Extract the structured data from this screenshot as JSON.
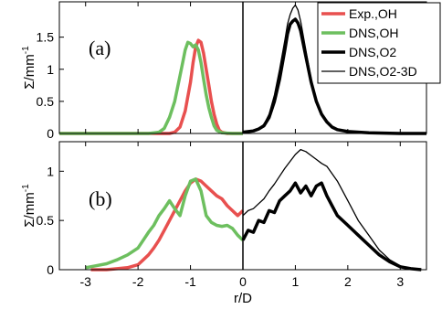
{
  "chart_data": {
    "type": "line",
    "xlabel": "r/D",
    "xlim": [
      -3.5,
      3.5
    ],
    "x_ticks": [
      -3,
      -2,
      -1,
      0,
      1,
      2,
      3
    ],
    "grid": false,
    "legend": {
      "placement": "top-right",
      "entries": [
        {
          "label": "Exp.,OH",
          "color": "#e8504f",
          "width": "thick"
        },
        {
          "label": "DNS,OH",
          "color": "#6dbf5f",
          "width": "thick"
        },
        {
          "label": "DNS,O2",
          "color": "#000000",
          "width": "thick"
        },
        {
          "label": "DNS,O2-3D",
          "color": "#000000",
          "width": "thin"
        }
      ]
    },
    "panels": [
      {
        "label": "(a)",
        "ylabel": "Σ/mm",
        "ylabel_exponent": "-1",
        "ylim": [
          0,
          2.05
        ],
        "y_ticks": [
          0,
          0.5,
          1,
          1.5
        ],
        "y_tick_labels": [
          "0",
          "0.5",
          "1",
          "1.5"
        ],
        "series": [
          {
            "name": "Exp.,OH",
            "x": [
              -3.5,
              -1.6,
              -1.4,
              -1.3,
              -1.2,
              -1.1,
              -1.0,
              -0.95,
              -0.9,
              -0.85,
              -0.8,
              -0.75,
              -0.7,
              -0.65,
              -0.6,
              -0.55,
              -0.5,
              -0.45,
              -0.4,
              -0.3,
              -0.2,
              0
            ],
            "y": [
              0,
              0,
              0,
              0.02,
              0.1,
              0.35,
              0.8,
              1.1,
              1.35,
              1.45,
              1.42,
              1.25,
              1.0,
              0.75,
              0.5,
              0.3,
              0.15,
              0.05,
              0.02,
              0,
              0,
              0
            ]
          },
          {
            "name": "DNS,OH",
            "x": [
              -3.5,
              -1.8,
              -1.6,
              -1.5,
              -1.4,
              -1.3,
              -1.25,
              -1.2,
              -1.15,
              -1.1,
              -1.05,
              -1.0,
              -0.95,
              -0.9,
              -0.85,
              -0.8,
              -0.75,
              -0.7,
              -0.65,
              -0.6,
              -0.55,
              -0.5,
              -0.4,
              -0.2,
              0
            ],
            "y": [
              0,
              0,
              0.02,
              0.08,
              0.25,
              0.5,
              0.7,
              0.9,
              1.1,
              1.3,
              1.42,
              1.4,
              1.35,
              1.38,
              1.3,
              1.1,
              0.85,
              0.6,
              0.4,
              0.25,
              0.12,
              0.05,
              0.01,
              0,
              0
            ]
          },
          {
            "name": "DNS,O2",
            "x": [
              0,
              0.2,
              0.3,
              0.4,
              0.5,
              0.6,
              0.7,
              0.8,
              0.85,
              0.9,
              0.95,
              1.0,
              1.05,
              1.1,
              1.2,
              1.3,
              1.4,
              1.5,
              1.6,
              1.7,
              1.8,
              2.0,
              2.4,
              3.0,
              3.5
            ],
            "y": [
              0.02,
              0.04,
              0.07,
              0.12,
              0.25,
              0.5,
              0.85,
              1.3,
              1.55,
              1.7,
              1.75,
              1.78,
              1.72,
              1.6,
              1.2,
              0.8,
              0.5,
              0.3,
              0.18,
              0.1,
              0.06,
              0.03,
              0.01,
              0,
              0
            ]
          },
          {
            "name": "DNS,O2-3D",
            "x": [
              0,
              0.2,
              0.3,
              0.4,
              0.5,
              0.6,
              0.7,
              0.8,
              0.85,
              0.9,
              0.95,
              1.0,
              1.05,
              1.1,
              1.2,
              1.3,
              1.4,
              1.5,
              1.6,
              1.7,
              1.8,
              2.0,
              2.4,
              3.0,
              3.5
            ],
            "y": [
              0.02,
              0.04,
              0.08,
              0.14,
              0.3,
              0.6,
              1.0,
              1.45,
              1.7,
              1.85,
              1.95,
              2.0,
              1.92,
              1.75,
              1.3,
              0.85,
              0.52,
              0.32,
              0.2,
              0.11,
              0.07,
              0.03,
              0.01,
              0,
              0
            ]
          }
        ]
      },
      {
        "label": "(b)",
        "ylabel": "Σ/mm",
        "ylabel_exponent": "-1",
        "ylim": [
          0,
          1.3
        ],
        "y_ticks": [
          0,
          0.5,
          1
        ],
        "y_tick_labels": [
          "0",
          "0.5",
          "1"
        ],
        "series": [
          {
            "name": "Exp.,OH",
            "x": [
              -2.9,
              -2.8,
              -2.6,
              -2.4,
              -2.2,
              -2.0,
              -1.9,
              -1.8,
              -1.7,
              -1.6,
              -1.5,
              -1.4,
              -1.3,
              -1.2,
              -1.1,
              -1.0,
              -0.9,
              -0.8,
              -0.7,
              -0.6,
              -0.5,
              -0.4,
              -0.3,
              -0.2,
              -0.1,
              0
            ],
            "y": [
              0,
              0,
              0,
              0.01,
              0.02,
              0.05,
              0.1,
              0.15,
              0.22,
              0.3,
              0.4,
              0.5,
              0.6,
              0.7,
              0.8,
              0.88,
              0.92,
              0.9,
              0.85,
              0.8,
              0.75,
              0.72,
              0.65,
              0.6,
              0.55,
              0.6
            ]
          },
          {
            "name": "DNS,OH",
            "x": [
              -3.0,
              -2.8,
              -2.6,
              -2.4,
              -2.2,
              -2.0,
              -1.9,
              -1.8,
              -1.7,
              -1.6,
              -1.5,
              -1.4,
              -1.3,
              -1.2,
              -1.1,
              -1.0,
              -0.9,
              -0.8,
              -0.7,
              -0.6,
              -0.5,
              -0.4,
              -0.3,
              -0.2,
              -0.1,
              0
            ],
            "y": [
              0.02,
              0.04,
              0.06,
              0.1,
              0.15,
              0.22,
              0.3,
              0.38,
              0.45,
              0.55,
              0.62,
              0.7,
              0.62,
              0.55,
              0.75,
              0.9,
              0.92,
              0.8,
              0.55,
              0.48,
              0.45,
              0.44,
              0.45,
              0.42,
              0.35,
              0.3
            ]
          },
          {
            "name": "DNS,O2",
            "x": [
              0,
              0.1,
              0.2,
              0.3,
              0.4,
              0.5,
              0.6,
              0.7,
              0.8,
              0.9,
              1.0,
              1.1,
              1.2,
              1.3,
              1.4,
              1.5,
              1.6,
              1.7,
              1.8,
              2.0,
              2.2,
              2.4,
              2.6,
              2.8,
              3.0,
              3.2,
              3.4
            ],
            "y": [
              0.3,
              0.4,
              0.38,
              0.5,
              0.48,
              0.6,
              0.58,
              0.7,
              0.75,
              0.8,
              0.88,
              0.78,
              0.85,
              0.75,
              0.85,
              0.88,
              0.75,
              0.65,
              0.55,
              0.45,
              0.35,
              0.25,
              0.15,
              0.08,
              0.03,
              0.01,
              0
            ]
          },
          {
            "name": "DNS,O2-3D",
            "x": [
              0,
              0.1,
              0.2,
              0.3,
              0.4,
              0.5,
              0.6,
              0.7,
              0.8,
              0.9,
              1.0,
              1.1,
              1.2,
              1.3,
              1.4,
              1.5,
              1.6,
              1.8,
              2.0,
              2.2,
              2.4,
              2.6,
              2.8,
              3.0,
              3.2,
              3.4
            ],
            "y": [
              0.55,
              0.6,
              0.62,
              0.67,
              0.72,
              0.8,
              0.87,
              0.95,
              1.03,
              1.1,
              1.17,
              1.22,
              1.2,
              1.16,
              1.12,
              1.08,
              1.05,
              0.9,
              0.7,
              0.5,
              0.35,
              0.2,
              0.1,
              0.04,
              0.01,
              0
            ]
          }
        ]
      }
    ]
  }
}
